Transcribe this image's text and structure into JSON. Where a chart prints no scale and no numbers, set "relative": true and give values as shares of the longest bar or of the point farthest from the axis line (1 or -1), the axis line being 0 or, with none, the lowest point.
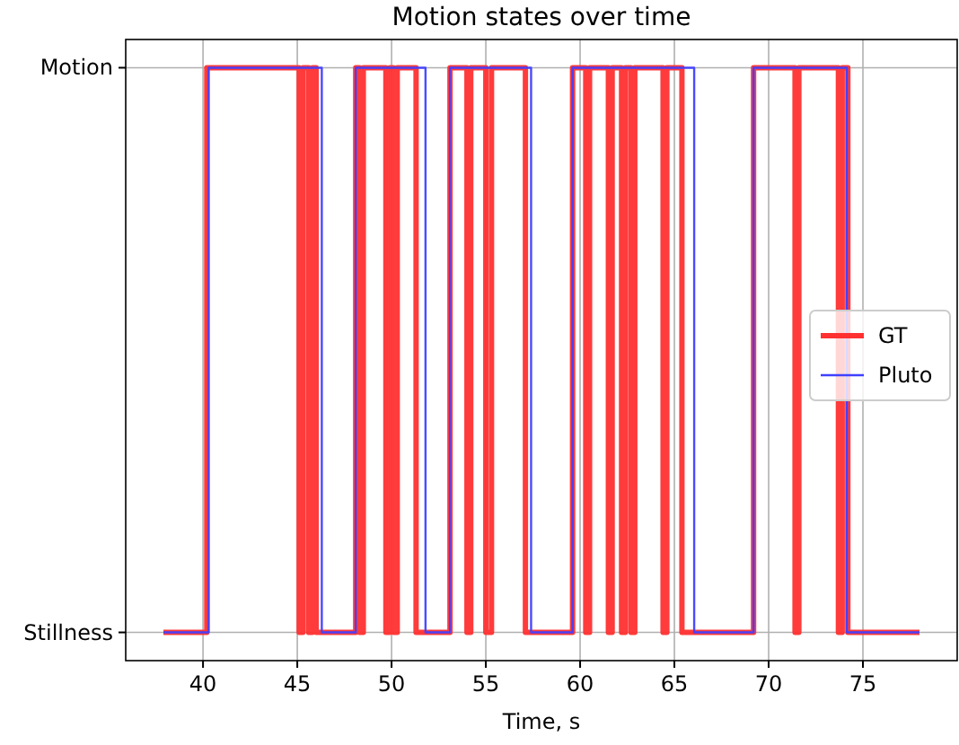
{
  "chart_data": {
    "type": "step",
    "title": "Motion states over time",
    "xlabel": "Time, s",
    "xlim": [
      35.9,
      80.0
    ],
    "xticks": [
      40,
      45,
      50,
      55,
      60,
      65,
      70,
      75
    ],
    "relative": true,
    "ref_lines": [
      {
        "axis": "y",
        "value": 0,
        "label": "Stillness"
      },
      {
        "axis": "y",
        "value": 1,
        "label": "Motion"
      }
    ],
    "grid": "x",
    "legend": "right",
    "series": [
      {
        "name": "GT",
        "color": "#ff3030",
        "x": [
          37.9,
          40.2,
          45.1,
          45.3,
          45.6,
          45.8,
          46.0,
          48.1,
          48.3,
          48.5,
          49.7,
          49.9,
          50.1,
          50.3,
          51.3,
          53.1,
          54.0,
          54.2,
          55.0,
          55.3,
          57.1,
          59.6,
          60.3,
          60.5,
          61.5,
          61.7,
          62.2,
          62.4,
          62.7,
          62.9,
          64.4,
          64.6,
          65.4,
          69.2,
          71.4,
          71.6,
          73.7,
          73.9,
          74.2,
          78.0
        ],
        "values": [
          0,
          1,
          0,
          1,
          0,
          1,
          0,
          1,
          0,
          1,
          0,
          1,
          0,
          1,
          0,
          1,
          0,
          1,
          0,
          1,
          0,
          1,
          0,
          1,
          0,
          1,
          0,
          1,
          0,
          1,
          0,
          1,
          0,
          1,
          0,
          1,
          0,
          1,
          0,
          0
        ]
      },
      {
        "name": "Pluto",
        "color": "#4040ff",
        "x": [
          37.9,
          40.3,
          46.3,
          48.1,
          51.8,
          53.1,
          57.4,
          59.6,
          66.05,
          69.2,
          74.15,
          78.0
        ],
        "values": [
          0,
          1,
          0,
          1,
          0,
          1,
          0,
          1,
          0,
          1,
          0,
          0
        ]
      }
    ]
  }
}
